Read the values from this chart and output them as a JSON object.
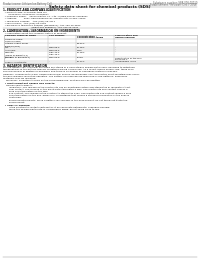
{
  "title": "Safety data sheet for chemical products (SDS)",
  "header_left": "Product name: Lithium Ion Battery Cell",
  "header_right_line1": "Substance number: SBR-008-00010",
  "header_right_line2": "Establishment / Revision: Dec.7.2016",
  "section1_title": "1. PRODUCT AND COMPANY IDENTIFICATION",
  "section1_lines": [
    "  • Product name: Lithium Ion Battery Cell",
    "  • Product code: Cylindrical-type cell",
    "       US18650U, US18650G, US18650A",
    "  • Company name:    Sanyo Electric Co., Ltd., Mobile Energy Company",
    "  • Address:         2001, Kamionakamachi, Sumoto-City, Hyogo, Japan",
    "  • Telephone number:   +81-(799)-26-4111",
    "  • Fax number:  +81-(799)-26-4129",
    "  • Emergency telephone number (Weekdays): +81-799-26-3562",
    "                                      (Night and holidays): +81-799-26-3131"
  ],
  "section2_title": "2. COMPOSITION / INFORMATION ON INGREDIENTS",
  "section2_sub1": "  • Substance or preparation: Preparation",
  "section2_sub2": "  • Information about the chemical nature of product:",
  "tbl_h0": "Common chemical name",
  "tbl_h1": "CAS number",
  "tbl_h2": "Concentration /",
  "tbl_h2b": "Concentration range",
  "tbl_h3": "Classification and",
  "tbl_h3b": "hazard labeling",
  "tbl_sub0a": "Common name",
  "tbl_sub0b": "Several name",
  "tbl_rows": [
    [
      "Lithium cobalt oxide",
      "-",
      "30-60%",
      ""
    ],
    [
      "(LiMn/Co/PO4)",
      "",
      "",
      ""
    ],
    [
      "Iron",
      "7439-89-6",
      "10-25%",
      "-"
    ],
    [
      "Aluminum",
      "7429-90-5",
      "2-8%",
      "-"
    ],
    [
      "Graphite",
      "7782-42-5",
      "10-25%",
      "-"
    ],
    [
      "(Made of graphite-1)",
      "7782-43-2",
      "",
      ""
    ],
    [
      "(AA-Nec of graphite-1)",
      "",
      "",
      ""
    ],
    [
      "Copper",
      "7440-50-8",
      "5-15%",
      "Sensitization of the skin"
    ],
    [
      "",
      "",
      "",
      "group No.2"
    ],
    [
      "Organic electrolyte",
      "-",
      "10-20%",
      "Inflammable liquid"
    ]
  ],
  "section3_title": "3. HAZARDS IDENTIFICATION",
  "section3_para1a": "For the battery cell, chemical materials are stored in a hermetically sealed metal case, designed to withstand",
  "section3_para1b": "temperatures in the battery-specific conditions during normal use. As a result, during normal use, there is no",
  "section3_para1c": "physical danger of ignition or explosion and there is no danger of hazardous materials leakage.",
  "section3_para2a": "However, if exposed to a fire, added mechanical shocks, decomposed, shorted electric short-circuiting may occur,",
  "section3_para2b": "the gas releases cannot be operated. The battery cell case will be breached or fire-patterns, hazardous",
  "section3_para2c": "materials may be released.",
  "section3_para3": "Moreover, if heated strongly by the surrounding fire, soot gas may be emitted.",
  "s3_bullet1": "  • Most important hazard and effects:",
  "s3_human": "    Human health effects:",
  "s3_inh_a": "        Inhalation: The release of the electrolyte has an anesthesia action and stimulates in respiratory tract.",
  "s3_skin_a": "        Skin contact: The release of the electrolyte stimulates a skin. The electrolyte skin contact causes a",
  "s3_skin_b": "        sore and stimulation on the skin.",
  "s3_eye_a": "        Eye contact: The release of the electrolyte stimulates eyes. The electrolyte eye contact causes a sore",
  "s3_eye_b": "        and stimulation on the eye. Especially, a substance that causes a strong inflammation of the eyes is",
  "s3_eye_c": "        contained.",
  "s3_env_a": "        Environmental effects: Since a battery cell remains in the environment, do not throw out it into the",
  "s3_env_b": "        environment.",
  "s3_bullet2": "  • Specific hazards:",
  "s3_sp1": "        If the electrolyte contacts with water, it will generate detrimental hydrogen fluoride.",
  "s3_sp2": "        Since the sealed electrolyte is inflammable liquid, do not bring close to fire.",
  "bg_color": "#ffffff",
  "text_color": "#111111",
  "gray_color": "#666666",
  "line_color": "#999999",
  "table_line_color": "#aaaaaa"
}
